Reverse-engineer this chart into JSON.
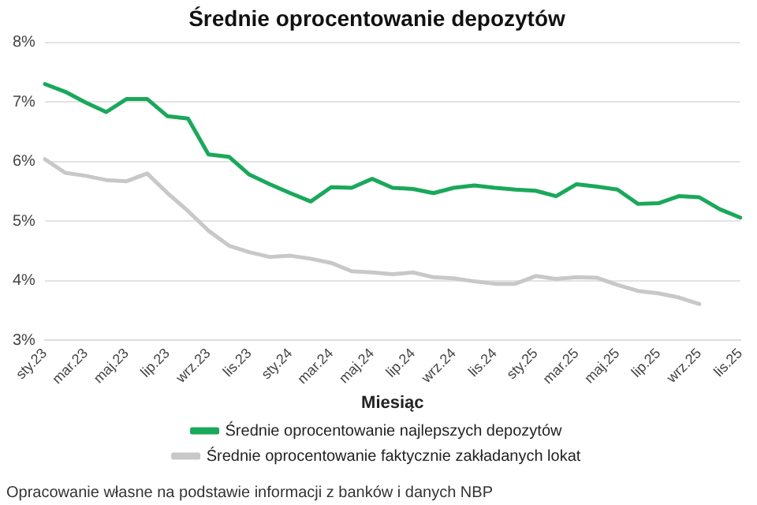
{
  "chart_data": {
    "type": "line",
    "title": "Średnie oprocentowanie depozytów",
    "xlabel": "Miesiąc",
    "categories": [
      "sty.23",
      null,
      "mar.23",
      null,
      "maj.23",
      null,
      "lip.23",
      null,
      "wrz.23",
      null,
      "lis.23",
      null,
      "sty.24",
      null,
      "mar.24",
      null,
      "maj.24",
      null,
      "lip.24",
      null,
      "wrz.24",
      null,
      "lis.24",
      null,
      "sty.25",
      null,
      "mar.25",
      null,
      "maj.25",
      null,
      "lip.25",
      null,
      "wrz.25",
      null,
      "lis.25"
    ],
    "series": [
      {
        "name": "Średnie oprocentowanie najlepszych depozytów",
        "color": "#1aa85a",
        "values": [
          7.3,
          7.17,
          6.99,
          6.83,
          7.05,
          7.05,
          6.76,
          6.72,
          6.12,
          6.08,
          5.78,
          5.62,
          5.47,
          5.33,
          5.57,
          5.56,
          5.71,
          5.56,
          5.54,
          5.47,
          5.56,
          5.6,
          5.56,
          5.53,
          5.51,
          5.42,
          5.62,
          5.58,
          5.53,
          5.29,
          5.3,
          5.42,
          5.4,
          5.2,
          5.06
        ]
      },
      {
        "name": "Średnie oprocentowanie faktycznie zakładanych lokat",
        "color": "#c8c8c8",
        "values": [
          6.04,
          5.81,
          5.76,
          5.69,
          5.67,
          5.8,
          5.47,
          5.17,
          4.84,
          4.59,
          4.48,
          4.4,
          4.42,
          4.37,
          4.3,
          4.16,
          4.14,
          4.11,
          4.14,
          4.06,
          4.04,
          3.99,
          3.95,
          3.95,
          4.08,
          4.03,
          4.06,
          4.05,
          3.93,
          3.83,
          3.79,
          3.72,
          3.61,
          null,
          null
        ]
      }
    ],
    "ylim": [
      3,
      8
    ],
    "yticks": [
      {
        "value": 3,
        "label": "3%"
      },
      {
        "value": 4,
        "label": "4%"
      },
      {
        "value": 5,
        "label": "5%"
      },
      {
        "value": 6,
        "label": "6%"
      },
      {
        "value": 7,
        "label": "7%"
      },
      {
        "value": 8,
        "label": "8%"
      }
    ],
    "grid": "y",
    "legend": "bottom",
    "marker": "none",
    "line_style": "solid",
    "annotations": [
      "Opracowanie własne na podstawie informacji z banków i danych NBP"
    ]
  }
}
